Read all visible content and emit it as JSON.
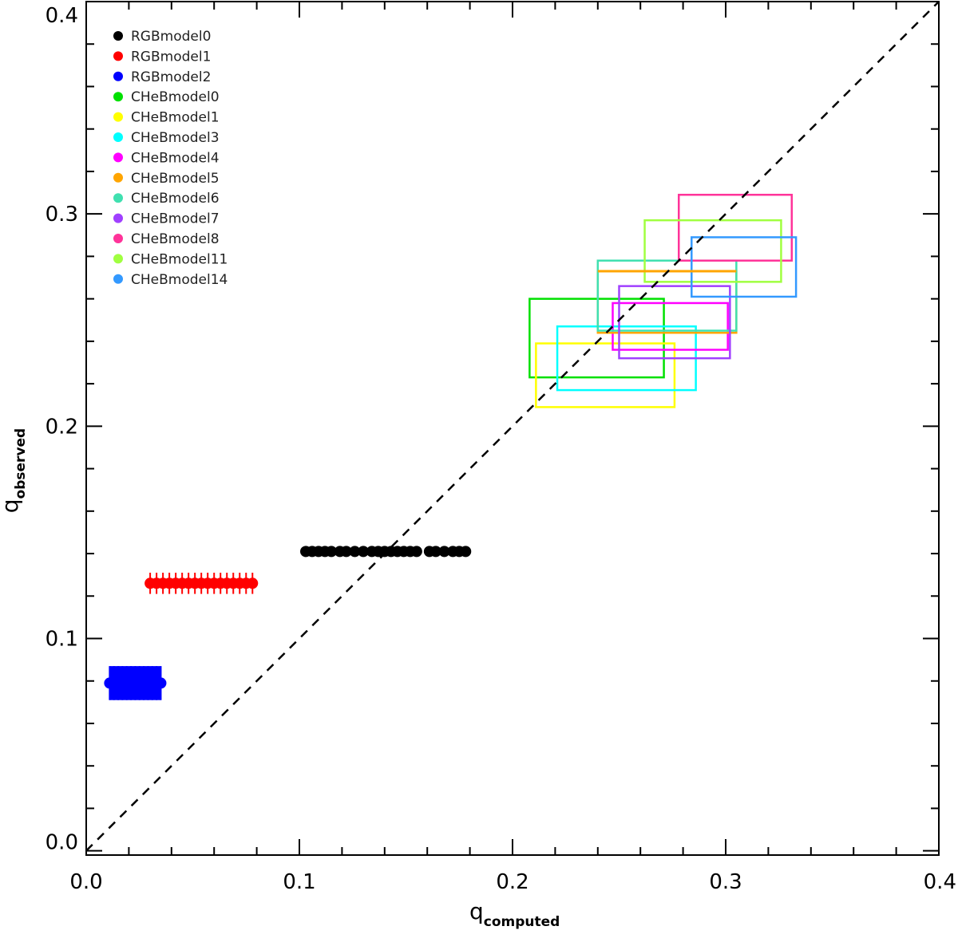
{
  "chart_data": {
    "type": "scatter",
    "xlabel": "q",
    "xlabel_sub": "computed",
    "ylabel": "q",
    "ylabel_sub": "observed",
    "xlim": [
      0.0,
      0.4
    ],
    "ylim": [
      -0.002,
      0.4
    ],
    "xticks": [
      "0.0",
      "0.1",
      "0.2",
      "0.3",
      "0.4"
    ],
    "yticks": [
      "0.0",
      "0.1",
      "0.2",
      "0.3",
      "0.4"
    ],
    "xtick_values": [
      0.0,
      0.1,
      0.2,
      0.3,
      0.4
    ],
    "ytick_values": [
      0.0,
      0.1,
      0.2,
      0.3,
      0.4
    ],
    "minor_tick_step": 0.02,
    "reference_line": {
      "style": "dashed",
      "from": [
        0.0,
        0.0
      ],
      "to": [
        0.4,
        0.4
      ],
      "color": "#000000"
    },
    "legend": {
      "position": "top-left",
      "entries": [
        {
          "label": "RGBmodel0",
          "color": "#000000"
        },
        {
          "label": "RGBmodel1",
          "color": "#ff0000"
        },
        {
          "label": "RGBmodel2",
          "color": "#0000ff"
        },
        {
          "label": "CHeBmodel0",
          "color": "#00e000"
        },
        {
          "label": "CHeBmodel1",
          "color": "#ffff00"
        },
        {
          "label": "CHeBmodel3",
          "color": "#00ffff"
        },
        {
          "label": "CHeBmodel4",
          "color": "#ff00ff"
        },
        {
          "label": "CHeBmodel5",
          "color": "#ffa500"
        },
        {
          "label": "CHeBmodel6",
          "color": "#40e0b0"
        },
        {
          "label": "CHeBmodel7",
          "color": "#a040ff"
        },
        {
          "label": "CHeBmodel8",
          "color": "#ff3399"
        },
        {
          "label": "CHeBmodel11",
          "color": "#a0ff40"
        },
        {
          "label": "CHeBmodel14",
          "color": "#3399ff"
        }
      ]
    },
    "point_series": [
      {
        "model": "RGBmodel0",
        "color": "#000000",
        "marker": "circle",
        "y": 0.141,
        "x": [
          0.103,
          0.106,
          0.109,
          0.112,
          0.115,
          0.119,
          0.122,
          0.126,
          0.13,
          0.134,
          0.137,
          0.14,
          0.143,
          0.146,
          0.149,
          0.152,
          0.155,
          0.161,
          0.164,
          0.168,
          0.172,
          0.175,
          0.178
        ]
      },
      {
        "model": "RGBmodel1",
        "color": "#ff0000",
        "marker": "circle-with-errorbar",
        "y": 0.126,
        "yerr": 0.005,
        "x": [
          0.03,
          0.033,
          0.036,
          0.039,
          0.042,
          0.045,
          0.048,
          0.051,
          0.054,
          0.057,
          0.06,
          0.063,
          0.066,
          0.069,
          0.072,
          0.075,
          0.078
        ]
      },
      {
        "model": "RGBmodel2",
        "color": "#0000ff",
        "marker": "circle-with-errorbar",
        "y": 0.079,
        "yerr": 0.008,
        "x": [
          0.011,
          0.013,
          0.015,
          0.017,
          0.019,
          0.021,
          0.023,
          0.025,
          0.027,
          0.029,
          0.031,
          0.033,
          0.035
        ]
      }
    ],
    "box_series": [
      {
        "model": "CHeBmodel0",
        "color": "#00e000",
        "x": [
          0.208,
          0.271
        ],
        "y": [
          0.223,
          0.26
        ]
      },
      {
        "model": "CHeBmodel1",
        "color": "#ffff00",
        "x": [
          0.211,
          0.276
        ],
        "y": [
          0.209,
          0.239
        ]
      },
      {
        "model": "CHeBmodel3",
        "color": "#00ffff",
        "x": [
          0.221,
          0.286
        ],
        "y": [
          0.217,
          0.247
        ]
      },
      {
        "model": "CHeBmodel4",
        "color": "#ff00ff",
        "x": [
          0.247,
          0.301
        ],
        "y": [
          0.236,
          0.258
        ]
      },
      {
        "model": "CHeBmodel5",
        "color": "#ffa500",
        "x": [
          0.24,
          0.305
        ],
        "y": [
          0.244,
          0.273
        ]
      },
      {
        "model": "CHeBmodel6",
        "color": "#40e0b0",
        "x": [
          0.24,
          0.305
        ],
        "y": [
          0.245,
          0.278
        ]
      },
      {
        "model": "CHeBmodel7",
        "color": "#a040ff",
        "x": [
          0.25,
          0.302
        ],
        "y": [
          0.232,
          0.266
        ]
      },
      {
        "model": "CHeBmodel8",
        "color": "#ff3399",
        "x": [
          0.278,
          0.331
        ],
        "y": [
          0.278,
          0.309
        ]
      },
      {
        "model": "CHeBmodel11",
        "color": "#a0ff40",
        "x": [
          0.262,
          0.326
        ],
        "y": [
          0.268,
          0.297
        ]
      },
      {
        "model": "CHeBmodel14",
        "color": "#3399ff",
        "x": [
          0.284,
          0.333
        ],
        "y": [
          0.261,
          0.289
        ]
      }
    ]
  }
}
